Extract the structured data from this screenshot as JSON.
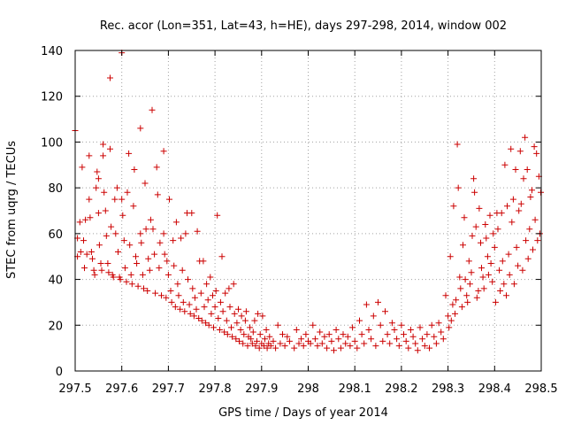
{
  "chart_data": {
    "type": "scatter",
    "title": "Rec. acor (Lon=351, Lat=43, h=HE), days 297-298, 2014, window 002",
    "xlabel": "GPS time / Days of year 2014",
    "ylabel": "STEC from uqrg / TECUs",
    "xlim": [
      297.5,
      298.5
    ],
    "ylim": [
      0,
      140
    ],
    "xticks": [
      "297.5",
      "297.6",
      "297.7",
      "297.8",
      "297.9",
      "298",
      "298.1",
      "298.2",
      "298.3",
      "298.4",
      "298.5"
    ],
    "yticks": [
      "0",
      "20",
      "40",
      "60",
      "80",
      "100",
      "120",
      "140"
    ],
    "grid": true,
    "marker": "+",
    "color": "#cc0000",
    "points": [
      [
        297.5,
        105
      ],
      [
        297.505,
        58
      ],
      [
        297.505,
        50
      ],
      [
        297.51,
        65
      ],
      [
        297.512,
        52
      ],
      [
        297.515,
        89
      ],
      [
        297.518,
        57
      ],
      [
        297.52,
        45
      ],
      [
        297.522,
        66
      ],
      [
        297.525,
        51
      ],
      [
        297.53,
        94
      ],
      [
        297.53,
        75
      ],
      [
        297.532,
        67
      ],
      [
        297.535,
        52
      ],
      [
        297.537,
        49
      ],
      [
        297.54,
        44
      ],
      [
        297.542,
        42
      ],
      [
        297.545,
        80
      ],
      [
        297.547,
        87
      ],
      [
        297.55,
        84
      ],
      [
        297.55,
        69
      ],
      [
        297.552,
        55
      ],
      [
        297.555,
        47
      ],
      [
        297.557,
        44
      ],
      [
        297.56,
        99
      ],
      [
        297.56,
        94
      ],
      [
        297.562,
        78
      ],
      [
        297.565,
        70
      ],
      [
        297.567,
        59
      ],
      [
        297.57,
        47
      ],
      [
        297.572,
        43
      ],
      [
        297.575,
        97
      ],
      [
        297.575,
        128
      ],
      [
        297.577,
        63
      ],
      [
        297.58,
        42
      ],
      [
        297.582,
        41
      ],
      [
        297.585,
        75
      ],
      [
        297.587,
        60
      ],
      [
        297.59,
        80
      ],
      [
        297.592,
        52
      ],
      [
        297.595,
        41
      ],
      [
        297.597,
        40
      ],
      [
        297.6,
        139
      ],
      [
        297.6,
        75
      ],
      [
        297.602,
        68
      ],
      [
        297.605,
        57
      ],
      [
        297.607,
        45
      ],
      [
        297.61,
        39
      ],
      [
        297.612,
        78
      ],
      [
        297.615,
        95
      ],
      [
        297.617,
        55
      ],
      [
        297.62,
        42
      ],
      [
        297.622,
        38
      ],
      [
        297.625,
        72
      ],
      [
        297.627,
        88
      ],
      [
        297.63,
        50
      ],
      [
        297.632,
        47
      ],
      [
        297.635,
        37
      ],
      [
        297.64,
        106
      ],
      [
        297.64,
        60
      ],
      [
        297.642,
        56
      ],
      [
        297.645,
        42
      ],
      [
        297.647,
        36
      ],
      [
        297.65,
        82
      ],
      [
        297.652,
        62
      ],
      [
        297.655,
        35
      ],
      [
        297.657,
        49
      ],
      [
        297.66,
        44
      ],
      [
        297.662,
        66
      ],
      [
        297.665,
        114
      ],
      [
        297.667,
        62
      ],
      [
        297.67,
        51
      ],
      [
        297.672,
        34
      ],
      [
        297.675,
        89
      ],
      [
        297.677,
        77
      ],
      [
        297.68,
        45
      ],
      [
        297.682,
        56
      ],
      [
        297.685,
        33
      ],
      [
        297.69,
        96
      ],
      [
        297.69,
        60
      ],
      [
        297.692,
        51
      ],
      [
        297.695,
        32
      ],
      [
        297.697,
        48
      ],
      [
        297.7,
        42
      ],
      [
        297.702,
        75
      ],
      [
        297.705,
        35
      ],
      [
        297.707,
        30
      ],
      [
        297.71,
        57
      ],
      [
        297.712,
        46
      ],
      [
        297.715,
        28
      ],
      [
        297.717,
        65
      ],
      [
        297.72,
        38
      ],
      [
        297.722,
        33
      ],
      [
        297.725,
        27
      ],
      [
        297.727,
        58
      ],
      [
        297.73,
        44
      ],
      [
        297.732,
        30
      ],
      [
        297.735,
        26
      ],
      [
        297.737,
        60
      ],
      [
        297.74,
        69
      ],
      [
        297.742,
        40
      ],
      [
        297.745,
        29
      ],
      [
        297.747,
        25
      ],
      [
        297.75,
        69
      ],
      [
        297.752,
        36
      ],
      [
        297.755,
        24
      ],
      [
        297.757,
        32
      ],
      [
        297.76,
        27
      ],
      [
        297.762,
        61
      ],
      [
        297.765,
        23
      ],
      [
        297.767,
        48
      ],
      [
        297.77,
        34
      ],
      [
        297.772,
        22
      ],
      [
        297.775,
        48
      ],
      [
        297.777,
        28
      ],
      [
        297.78,
        21
      ],
      [
        297.782,
        38
      ],
      [
        297.785,
        31
      ],
      [
        297.787,
        20
      ],
      [
        297.79,
        41
      ],
      [
        297.792,
        25
      ],
      [
        297.795,
        33
      ],
      [
        297.797,
        19
      ],
      [
        297.8,
        28
      ],
      [
        297.802,
        35
      ],
      [
        297.805,
        68
      ],
      [
        297.807,
        23
      ],
      [
        297.81,
        18
      ],
      [
        297.812,
        30
      ],
      [
        297.815,
        50
      ],
      [
        297.817,
        26
      ],
      [
        297.82,
        17
      ],
      [
        297.822,
        34
      ],
      [
        297.825,
        22
      ],
      [
        297.827,
        16
      ],
      [
        297.83,
        36
      ],
      [
        297.832,
        28
      ],
      [
        297.835,
        19
      ],
      [
        297.837,
        15
      ],
      [
        297.84,
        38
      ],
      [
        297.842,
        25
      ],
      [
        297.845,
        14
      ],
      [
        297.847,
        21
      ],
      [
        297.85,
        27
      ],
      [
        297.852,
        13
      ],
      [
        297.855,
        18
      ],
      [
        297.857,
        24
      ],
      [
        297.86,
        12
      ],
      [
        297.862,
        16
      ],
      [
        297.865,
        22
      ],
      [
        297.867,
        26
      ],
      [
        297.87,
        11
      ],
      [
        297.872,
        15
      ],
      [
        297.875,
        19
      ],
      [
        297.877,
        14
      ],
      [
        297.88,
        12
      ],
      [
        297.882,
        17
      ],
      [
        297.885,
        22
      ],
      [
        297.887,
        11
      ],
      [
        297.89,
        13
      ],
      [
        297.892,
        25
      ],
      [
        297.895,
        10
      ],
      [
        297.897,
        16
      ],
      [
        297.9,
        12
      ],
      [
        297.902,
        24
      ],
      [
        297.905,
        11
      ],
      [
        297.907,
        14
      ],
      [
        297.91,
        18
      ],
      [
        297.912,
        10
      ],
      [
        297.915,
        12
      ],
      [
        297.917,
        15
      ],
      [
        297.92,
        11
      ],
      [
        297.925,
        13
      ],
      [
        297.93,
        10
      ],
      [
        297.935,
        20
      ],
      [
        297.94,
        12
      ],
      [
        297.945,
        16
      ],
      [
        297.95,
        11
      ],
      [
        297.955,
        15
      ],
      [
        297.96,
        13
      ],
      [
        297.97,
        10
      ],
      [
        297.975,
        18
      ],
      [
        297.98,
        12
      ],
      [
        297.985,
        14
      ],
      [
        297.99,
        11
      ],
      [
        297.995,
        16
      ],
      [
        298.0,
        13
      ],
      [
        298.005,
        12
      ],
      [
        298.01,
        20
      ],
      [
        298.015,
        14
      ],
      [
        298.02,
        11
      ],
      [
        298.025,
        17
      ],
      [
        298.03,
        12
      ],
      [
        298.035,
        15
      ],
      [
        298.04,
        10
      ],
      [
        298.045,
        16
      ],
      [
        298.05,
        13
      ],
      [
        298.055,
        9
      ],
      [
        298.06,
        18
      ],
      [
        298.065,
        14
      ],
      [
        298.07,
        10
      ],
      [
        298.075,
        16
      ],
      [
        298.08,
        12
      ],
      [
        298.085,
        15
      ],
      [
        298.09,
        11
      ],
      [
        298.095,
        19
      ],
      [
        298.1,
        13
      ],
      [
        298.105,
        10
      ],
      [
        298.11,
        22
      ],
      [
        298.115,
        16
      ],
      [
        298.12,
        12
      ],
      [
        298.125,
        29
      ],
      [
        298.13,
        18
      ],
      [
        298.135,
        14
      ],
      [
        298.14,
        24
      ],
      [
        298.145,
        11
      ],
      [
        298.15,
        30
      ],
      [
        298.155,
        20
      ],
      [
        298.16,
        13
      ],
      [
        298.165,
        26
      ],
      [
        298.17,
        16
      ],
      [
        298.175,
        12
      ],
      [
        298.18,
        21
      ],
      [
        298.185,
        18
      ],
      [
        298.19,
        14
      ],
      [
        298.195,
        11
      ],
      [
        298.2,
        20
      ],
      [
        298.205,
        16
      ],
      [
        298.21,
        13
      ],
      [
        298.215,
        10
      ],
      [
        298.22,
        18
      ],
      [
        298.225,
        15
      ],
      [
        298.23,
        12
      ],
      [
        298.235,
        9
      ],
      [
        298.24,
        19
      ],
      [
        298.245,
        14
      ],
      [
        298.25,
        11
      ],
      [
        298.255,
        16
      ],
      [
        298.26,
        10
      ],
      [
        298.265,
        20
      ],
      [
        298.27,
        15
      ],
      [
        298.275,
        12
      ],
      [
        298.28,
        21
      ],
      [
        298.285,
        17
      ],
      [
        298.29,
        14
      ],
      [
        298.295,
        33
      ],
      [
        298.3,
        24
      ],
      [
        298.302,
        19
      ],
      [
        298.305,
        50
      ],
      [
        298.307,
        22
      ],
      [
        298.31,
        29
      ],
      [
        298.312,
        72
      ],
      [
        298.315,
        25
      ],
      [
        298.317,
        31
      ],
      [
        298.32,
        99
      ],
      [
        298.322,
        80
      ],
      [
        298.325,
        41
      ],
      [
        298.327,
        36
      ],
      [
        298.33,
        28
      ],
      [
        298.332,
        55
      ],
      [
        298.335,
        67
      ],
      [
        298.337,
        40
      ],
      [
        298.34,
        33
      ],
      [
        298.342,
        30
      ],
      [
        298.345,
        48
      ],
      [
        298.347,
        38
      ],
      [
        298.35,
        43
      ],
      [
        298.352,
        59
      ],
      [
        298.355,
        84
      ],
      [
        298.357,
        78
      ],
      [
        298.36,
        63
      ],
      [
        298.362,
        32
      ],
      [
        298.365,
        35
      ],
      [
        298.367,
        71
      ],
      [
        298.37,
        56
      ],
      [
        298.372,
        45
      ],
      [
        298.375,
        41
      ],
      [
        298.377,
        36
      ],
      [
        298.38,
        64
      ],
      [
        298.382,
        58
      ],
      [
        298.385,
        50
      ],
      [
        298.387,
        42
      ],
      [
        298.39,
        68
      ],
      [
        298.392,
        47
      ],
      [
        298.395,
        39
      ],
      [
        298.397,
        60
      ],
      [
        298.4,
        54
      ],
      [
        298.402,
        30
      ],
      [
        298.405,
        69
      ],
      [
        298.407,
        62
      ],
      [
        298.41,
        44
      ],
      [
        298.412,
        35
      ],
      [
        298.415,
        69
      ],
      [
        298.417,
        48
      ],
      [
        298.42,
        38
      ],
      [
        298.422,
        90
      ],
      [
        298.425,
        33
      ],
      [
        298.427,
        72
      ],
      [
        298.43,
        51
      ],
      [
        298.432,
        42
      ],
      [
        298.435,
        97
      ],
      [
        298.437,
        65
      ],
      [
        298.44,
        75
      ],
      [
        298.442,
        38
      ],
      [
        298.445,
        88
      ],
      [
        298.447,
        54
      ],
      [
        298.45,
        46
      ],
      [
        298.452,
        70
      ],
      [
        298.455,
        96
      ],
      [
        298.457,
        73
      ],
      [
        298.46,
        44
      ],
      [
        298.462,
        84
      ],
      [
        298.465,
        102
      ],
      [
        298.467,
        57
      ],
      [
        298.47,
        88
      ],
      [
        298.472,
        49
      ],
      [
        298.475,
        62
      ],
      [
        298.477,
        76
      ],
      [
        298.48,
        79
      ],
      [
        298.482,
        53
      ],
      [
        298.485,
        98
      ],
      [
        298.487,
        66
      ],
      [
        298.49,
        95
      ],
      [
        298.492,
        57
      ],
      [
        298.495,
        85
      ],
      [
        298.497,
        60
      ],
      [
        298.499,
        78
      ]
    ]
  }
}
